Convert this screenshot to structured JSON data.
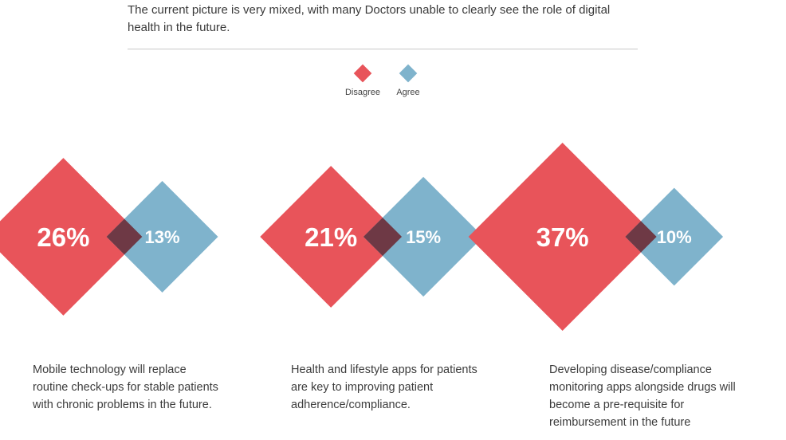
{
  "intro_text": "The current picture is very mixed, with many Doctors unable to clearly see the role of digital health in the future.",
  "colors": {
    "disagree": "#e8545a",
    "agree": "#7fb3cc",
    "overlap": "#6e3945",
    "label": "#ffffff"
  },
  "legend": [
    {
      "label": "Disagree",
      "series": "disagree"
    },
    {
      "label": "Agree",
      "series": "agree"
    }
  ],
  "chart_data": {
    "type": "diamond-area-comparison",
    "series": [
      {
        "name": "Disagree",
        "values": [
          26,
          21,
          37
        ]
      },
      {
        "name": "Agree",
        "values": [
          13,
          15,
          10
        ]
      }
    ],
    "unit": "%",
    "categories": [
      {
        "caption": "Mobile technology will replace routine check-ups for stable patients with chronic problems in the future.",
        "disagree": 26,
        "agree": 13,
        "disagree_label": "26%",
        "agree_label": "13%"
      },
      {
        "caption": "Health and lifestyle apps for patients are key to improving patient adherence/compliance.",
        "disagree": 21,
        "agree": 15,
        "disagree_label": "21%",
        "agree_label": "15%"
      },
      {
        "caption": "Developing disease/compliance monitoring apps alongside drugs will become a pre-requisite for reimbursement in the future",
        "disagree": 37,
        "agree": 10,
        "disagree_label": "37%",
        "agree_label": "10%"
      }
    ]
  }
}
